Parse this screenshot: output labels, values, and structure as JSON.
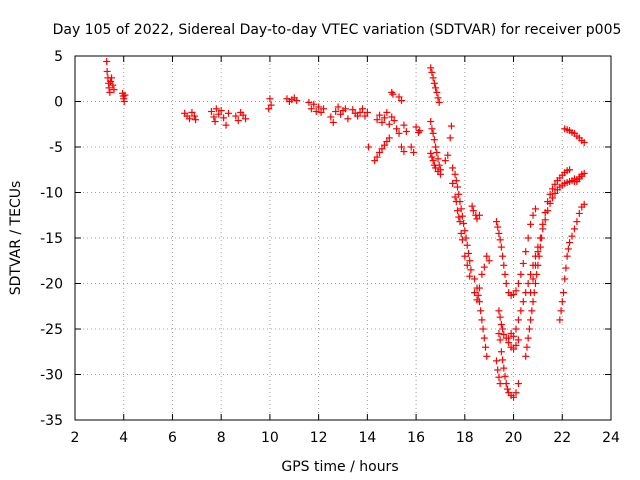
{
  "chart_data": {
    "type": "scatter",
    "title": "Day 105 of 2022, Sidereal Day-to-day VTEC variation (SDTVAR) for receiver p005",
    "xlabel": "GPS time / hours",
    "ylabel": "SDTVAR / TECUs",
    "xlim": [
      2,
      24
    ],
    "ylim": [
      -35,
      5
    ],
    "xticks": [
      2,
      4,
      6,
      8,
      10,
      12,
      14,
      16,
      18,
      20,
      22,
      24
    ],
    "yticks": [
      5,
      0,
      -5,
      -10,
      -15,
      -20,
      -25,
      -30,
      -35
    ],
    "grid": true,
    "marker": "+",
    "series": [
      {
        "name": "SDTVAR",
        "color": "#ff0000",
        "points": [
          [
            3.3,
            4.4
          ],
          [
            3.32,
            3.3
          ],
          [
            3.35,
            2.6
          ],
          [
            3.38,
            2.0
          ],
          [
            3.4,
            1.5
          ],
          [
            3.43,
            1.0
          ],
          [
            3.46,
            2.2
          ],
          [
            3.5,
            2.6
          ],
          [
            3.55,
            1.8
          ],
          [
            3.6,
            1.3
          ],
          [
            3.95,
            0.9
          ],
          [
            3.98,
            0.6
          ],
          [
            4.0,
            0.3
          ],
          [
            4.02,
            0.0
          ],
          [
            4.05,
            0.7
          ],
          [
            6.5,
            -1.3
          ],
          [
            6.6,
            -1.6
          ],
          [
            6.7,
            -1.9
          ],
          [
            6.8,
            -1.2
          ],
          [
            6.9,
            -1.6
          ],
          [
            6.95,
            -2.0
          ],
          [
            7.6,
            -1.1
          ],
          [
            7.7,
            -1.7
          ],
          [
            7.75,
            -2.2
          ],
          [
            7.8,
            -0.8
          ],
          [
            7.9,
            -1.4
          ],
          [
            8.0,
            -1.0
          ],
          [
            8.1,
            -1.8
          ],
          [
            8.2,
            -2.6
          ],
          [
            8.3,
            -1.3
          ],
          [
            8.6,
            -1.6
          ],
          [
            8.7,
            -2.1
          ],
          [
            8.8,
            -1.2
          ],
          [
            8.9,
            -1.5
          ],
          [
            9.0,
            -1.9
          ],
          [
            9.95,
            -0.8
          ],
          [
            10.0,
            0.3
          ],
          [
            10.05,
            -0.4
          ],
          [
            10.7,
            0.3
          ],
          [
            10.8,
            0.0
          ],
          [
            10.9,
            0.2
          ],
          [
            11.0,
            0.4
          ],
          [
            11.1,
            0.1
          ],
          [
            11.6,
            -0.1
          ],
          [
            11.7,
            -0.8
          ],
          [
            11.8,
            -0.3
          ],
          [
            11.9,
            -1.1
          ],
          [
            12.0,
            -0.6
          ],
          [
            12.1,
            -1.2
          ],
          [
            12.2,
            -0.8
          ],
          [
            12.5,
            -1.7
          ],
          [
            12.6,
            -2.3
          ],
          [
            12.7,
            -1.1
          ],
          [
            12.8,
            -0.6
          ],
          [
            12.9,
            -1.4
          ],
          [
            13.0,
            -1.0
          ],
          [
            13.1,
            -0.8
          ],
          [
            13.2,
            -1.9
          ],
          [
            13.4,
            -0.9
          ],
          [
            13.5,
            -1.3
          ],
          [
            13.6,
            -1.6
          ],
          [
            13.7,
            -1.2
          ],
          [
            13.8,
            -0.8
          ],
          [
            13.9,
            -1.6
          ],
          [
            14.0,
            -1.2
          ],
          [
            14.05,
            -5.0
          ],
          [
            14.3,
            -6.5
          ],
          [
            14.4,
            -6.1
          ],
          [
            14.5,
            -5.6
          ],
          [
            14.6,
            -5.2
          ],
          [
            14.7,
            -4.8
          ],
          [
            14.8,
            -4.4
          ],
          [
            14.9,
            -4.0
          ],
          [
            14.4,
            -2.0
          ],
          [
            14.5,
            -1.5
          ],
          [
            14.6,
            -2.3
          ],
          [
            14.7,
            -1.8
          ],
          [
            14.8,
            -1.2
          ],
          [
            14.9,
            -2.5
          ],
          [
            15.0,
            -1.7
          ],
          [
            15.1,
            -2.1
          ],
          [
            15.0,
            1.0
          ],
          [
            15.05,
            0.8
          ],
          [
            15.3,
            0.5
          ],
          [
            15.4,
            0.1
          ],
          [
            15.2,
            -3.0
          ],
          [
            15.3,
            -3.5
          ],
          [
            15.5,
            -2.6
          ],
          [
            15.6,
            -3.3
          ],
          [
            15.4,
            -5.0
          ],
          [
            15.5,
            -5.5
          ],
          [
            15.8,
            -5.0
          ],
          [
            15.9,
            -5.6
          ],
          [
            16.0,
            -2.8
          ],
          [
            16.1,
            -3.4
          ],
          [
            16.15,
            -3.2
          ],
          [
            16.6,
            3.7
          ],
          [
            16.65,
            3.2
          ],
          [
            16.7,
            2.6
          ],
          [
            16.75,
            2.0
          ],
          [
            16.8,
            1.5
          ],
          [
            16.85,
            1.0
          ],
          [
            16.9,
            0.4
          ],
          [
            16.95,
            -0.1
          ],
          [
            16.6,
            -2.2
          ],
          [
            16.65,
            -3.0
          ],
          [
            16.7,
            -3.5
          ],
          [
            16.75,
            -4.2
          ],
          [
            16.8,
            -5.0
          ],
          [
            16.85,
            -5.6
          ],
          [
            16.9,
            -6.3
          ],
          [
            16.95,
            -7.0
          ],
          [
            17.0,
            -7.5
          ],
          [
            16.6,
            -5.7
          ],
          [
            16.65,
            -6.1
          ],
          [
            16.7,
            -6.5
          ],
          [
            16.75,
            -7.0
          ],
          [
            16.8,
            -7.3
          ],
          [
            16.9,
            -7.7
          ],
          [
            17.0,
            -8.0
          ],
          [
            17.2,
            -6.5
          ],
          [
            17.3,
            -5.9
          ],
          [
            17.4,
            -4.0
          ],
          [
            17.45,
            -2.7
          ],
          [
            17.5,
            -7.3
          ],
          [
            17.6,
            -8.0
          ],
          [
            17.65,
            -8.7
          ],
          [
            17.7,
            -9.4
          ],
          [
            17.75,
            -10.2
          ],
          [
            17.8,
            -11.0
          ],
          [
            17.85,
            -11.8
          ],
          [
            17.9,
            -12.6
          ],
          [
            17.95,
            -13.4
          ],
          [
            18.0,
            -14.2
          ],
          [
            18.05,
            -15.0
          ],
          [
            18.1,
            -15.8
          ],
          [
            18.15,
            -16.7
          ],
          [
            18.2,
            -17.5
          ],
          [
            18.25,
            -18.5
          ],
          [
            17.5,
            -9.0
          ],
          [
            17.6,
            -10.5
          ],
          [
            17.65,
            -11.0
          ],
          [
            17.7,
            -12.0
          ],
          [
            17.75,
            -12.7
          ],
          [
            17.8,
            -13.2
          ],
          [
            17.85,
            -14.5
          ],
          [
            17.9,
            -15.2
          ],
          [
            18.0,
            -17.0
          ],
          [
            18.1,
            -18.0
          ],
          [
            18.2,
            -19.2
          ],
          [
            18.3,
            -11.5
          ],
          [
            18.35,
            -12.0
          ],
          [
            18.45,
            -12.5
          ],
          [
            18.5,
            -12.9
          ],
          [
            18.6,
            -12.5
          ],
          [
            18.4,
            -19.5
          ],
          [
            18.5,
            -20.5
          ],
          [
            18.55,
            -21.3
          ],
          [
            18.6,
            -22.0
          ],
          [
            18.65,
            -23.0
          ],
          [
            18.7,
            -24.0
          ],
          [
            18.75,
            -25.0
          ],
          [
            18.8,
            -26.0
          ],
          [
            18.85,
            -27.0
          ],
          [
            18.9,
            -28.0
          ],
          [
            18.4,
            -21.0
          ],
          [
            18.5,
            -21.8
          ],
          [
            18.6,
            -20.5
          ],
          [
            18.7,
            -19.0
          ],
          [
            18.8,
            -18.2
          ],
          [
            18.9,
            -17.0
          ],
          [
            19.0,
            -17.5
          ],
          [
            19.3,
            -13.2
          ],
          [
            19.35,
            -13.8
          ],
          [
            19.4,
            -14.5
          ],
          [
            19.45,
            -15.2
          ],
          [
            19.5,
            -16.0
          ],
          [
            19.55,
            -17.0
          ],
          [
            19.6,
            -18.0
          ],
          [
            19.65,
            -19.0
          ],
          [
            19.7,
            -20.0
          ],
          [
            19.8,
            -21.0
          ],
          [
            19.9,
            -21.3
          ],
          [
            20.0,
            -21.2
          ],
          [
            20.1,
            -20.8
          ],
          [
            20.2,
            -20.0
          ],
          [
            20.3,
            -19.0
          ],
          [
            20.4,
            -17.8
          ],
          [
            20.5,
            -16.5
          ],
          [
            20.6,
            -15.0
          ],
          [
            20.7,
            -13.5
          ],
          [
            20.8,
            -12.5
          ],
          [
            20.9,
            -11.8
          ],
          [
            19.4,
            -23.0
          ],
          [
            19.45,
            -23.7
          ],
          [
            19.5,
            -24.5
          ],
          [
            19.55,
            -25.0
          ],
          [
            19.6,
            -25.6
          ],
          [
            19.7,
            -26.0
          ],
          [
            19.8,
            -26.5
          ],
          [
            19.9,
            -27.0
          ],
          [
            20.0,
            -27.2
          ],
          [
            20.1,
            -26.8
          ],
          [
            20.2,
            -26.2
          ],
          [
            19.4,
            -25.5
          ],
          [
            19.45,
            -26.2
          ],
          [
            19.5,
            -27.5
          ],
          [
            19.55,
            -28.4
          ],
          [
            19.6,
            -29.3
          ],
          [
            19.65,
            -30.2
          ],
          [
            19.7,
            -31.0
          ],
          [
            19.75,
            -31.6
          ],
          [
            19.8,
            -32.0
          ],
          [
            19.9,
            -32.3
          ],
          [
            20.0,
            -32.5
          ],
          [
            20.1,
            -32.0
          ],
          [
            20.2,
            -31.0
          ],
          [
            19.3,
            -28.5
          ],
          [
            19.35,
            -29.5
          ],
          [
            19.4,
            -30.3
          ],
          [
            19.45,
            -31.0
          ],
          [
            19.8,
            -26.0
          ],
          [
            19.9,
            -25.5
          ],
          [
            20.0,
            -25.8
          ],
          [
            20.1,
            -25.0
          ],
          [
            20.2,
            -24.0
          ],
          [
            20.3,
            -23.0
          ],
          [
            20.4,
            -22.0
          ],
          [
            20.5,
            -21.0
          ],
          [
            20.6,
            -20.0
          ],
          [
            20.7,
            -19.0
          ],
          [
            20.8,
            -18.0
          ],
          [
            20.9,
            -17.0
          ],
          [
            21.0,
            -16.0
          ],
          [
            20.5,
            -28.0
          ],
          [
            20.55,
            -27.0
          ],
          [
            20.6,
            -26.0
          ],
          [
            20.65,
            -25.0
          ],
          [
            20.7,
            -24.0
          ],
          [
            20.75,
            -23.0
          ],
          [
            20.8,
            -22.0
          ],
          [
            20.85,
            -21.0
          ],
          [
            20.9,
            -20.0
          ],
          [
            20.95,
            -19.0
          ],
          [
            21.0,
            -18.0
          ],
          [
            21.05,
            -17.0
          ],
          [
            21.1,
            -16.0
          ],
          [
            21.15,
            -15.0
          ],
          [
            21.2,
            -14.0
          ],
          [
            21.3,
            -13.0
          ],
          [
            21.4,
            -12.0
          ],
          [
            21.5,
            -11.2
          ],
          [
            21.6,
            -10.6
          ],
          [
            21.7,
            -10.1
          ],
          [
            21.8,
            -9.7
          ],
          [
            21.9,
            -9.4
          ],
          [
            22.0,
            -9.2
          ],
          [
            22.1,
            -9.0
          ],
          [
            22.2,
            -8.9
          ],
          [
            22.3,
            -8.8
          ],
          [
            22.4,
            -8.7
          ],
          [
            22.5,
            -8.8
          ],
          [
            22.6,
            -8.6
          ],
          [
            22.7,
            -8.3
          ],
          [
            22.8,
            -8.0
          ],
          [
            20.7,
            -21.0
          ],
          [
            20.8,
            -19.5
          ],
          [
            20.9,
            -18.0
          ],
          [
            21.0,
            -16.5
          ],
          [
            21.1,
            -15.0
          ],
          [
            21.2,
            -13.5
          ],
          [
            21.3,
            -12.2
          ],
          [
            21.4,
            -11.0
          ],
          [
            21.5,
            -10.2
          ],
          [
            21.6,
            -9.6
          ],
          [
            21.7,
            -9.1
          ],
          [
            21.8,
            -8.7
          ],
          [
            21.9,
            -8.4
          ],
          [
            22.0,
            -8.1
          ],
          [
            22.1,
            -7.8
          ],
          [
            22.2,
            -7.6
          ],
          [
            22.3,
            -7.5
          ],
          [
            22.5,
            -8.5
          ],
          [
            22.6,
            -8.8
          ],
          [
            22.7,
            -8.5
          ],
          [
            22.8,
            -8.2
          ],
          [
            22.9,
            -7.9
          ],
          [
            21.9,
            -24.0
          ],
          [
            21.95,
            -23.0
          ],
          [
            22.0,
            -22.0
          ],
          [
            22.05,
            -21.0
          ],
          [
            22.1,
            -19.5
          ],
          [
            22.15,
            -18.3
          ],
          [
            22.2,
            -17.0
          ],
          [
            22.25,
            -16.2
          ],
          [
            22.3,
            -15.5
          ],
          [
            22.4,
            -14.8
          ],
          [
            22.5,
            -14.0
          ],
          [
            22.6,
            -13.2
          ],
          [
            22.7,
            -12.3
          ],
          [
            22.8,
            -11.6
          ],
          [
            22.9,
            -11.3
          ],
          [
            22.1,
            -3.0
          ],
          [
            22.2,
            -3.1
          ],
          [
            22.3,
            -3.2
          ],
          [
            22.4,
            -3.4
          ],
          [
            22.5,
            -3.5
          ],
          [
            22.6,
            -3.8
          ],
          [
            22.7,
            -4.0
          ],
          [
            22.8,
            -4.3
          ],
          [
            22.9,
            -4.5
          ]
        ]
      }
    ]
  }
}
